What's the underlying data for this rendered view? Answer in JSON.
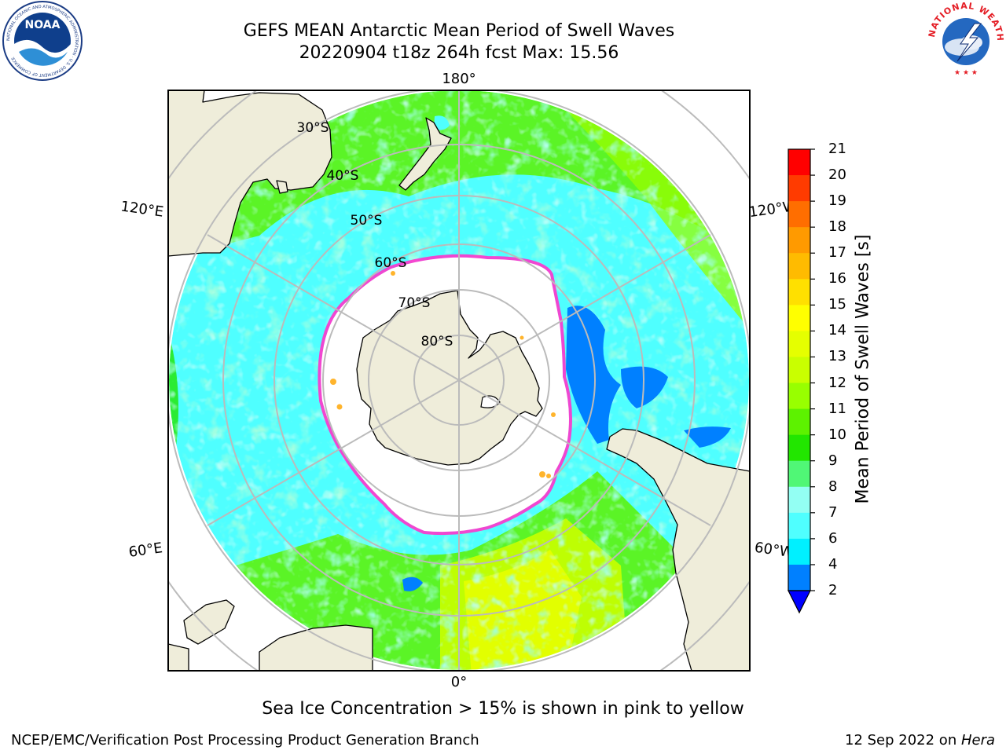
{
  "header": {
    "line1": "GEFS MEAN Antarctic Mean Period of Swell Waves",
    "line2": "20220904 t18z 264h fcst   Max: 15.56"
  },
  "logos": {
    "left": {
      "text": "NOAA",
      "ring_text": "NATIONAL OCEANIC AND ATMOSPHERIC ADMINISTRATION · U.S. DEPARTMENT OF COMMERCE"
    },
    "right": {
      "ring_text": "NATIONAL WEATHER SERVICE"
    }
  },
  "map": {
    "longitude_labels": {
      "top": "180°",
      "bottom": "0°",
      "upper_left": "120°E",
      "upper_right": "120°W",
      "lower_left": "60°E",
      "lower_right": "60°W"
    },
    "latitude_labels": [
      "30°S",
      "40°S",
      "50°S",
      "60°S",
      "70°S",
      "80°S"
    ],
    "colors": {
      "land": "#efedda",
      "ice": "#ffffff",
      "ice_edge": "#ff33cc",
      "ice_fringe": "#ffb42c",
      "grid": "#bbbbbb"
    }
  },
  "colorbar": {
    "title": "Mean Period of Swell Waves [s]",
    "ticks": [
      "21",
      "20",
      "19",
      "18",
      "17",
      "16",
      "15",
      "14",
      "13",
      "12",
      "11",
      "10",
      "9",
      "8",
      "7",
      "6",
      "4",
      "2"
    ],
    "colors": [
      "#ff0000",
      "#ff3b00",
      "#ff6e00",
      "#ff9a00",
      "#ffbb00",
      "#ffe000",
      "#ffff00",
      "#e5ff00",
      "#c9ff00",
      "#98ff00",
      "#5df200",
      "#22e600",
      "#50f776",
      "#93fff3",
      "#4fffff",
      "#00f0ff",
      "#0080ff"
    ],
    "extend_color": "#0000ff"
  },
  "caption": "Sea Ice Concentration > 15% is shown in pink to yellow",
  "footer": {
    "left": "NCEP/EMC/Verification Post Processing Product Generation Branch",
    "date": "12 Sep 2022 on ",
    "machine": "Hera"
  }
}
